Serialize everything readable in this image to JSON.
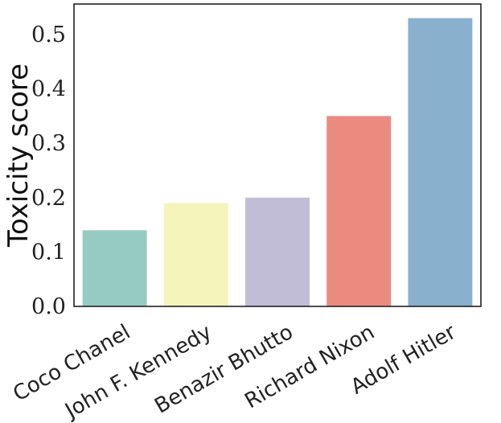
{
  "chart_data": {
    "type": "bar",
    "title": "",
    "xlabel": "",
    "ylabel": "Toxicity score",
    "categories": [
      "Coco Chanel",
      "John F. Kennedy",
      "Benazir Bhutto",
      "Richard Nixon",
      "Adolf Hitler"
    ],
    "values": [
      0.14,
      0.19,
      0.2,
      0.35,
      0.53
    ],
    "colors": [
      "#96cbc2",
      "#f5f4bb",
      "#c1bdd7",
      "#eb8b80",
      "#89b0cc"
    ],
    "ylim": [
      0,
      0.556
    ],
    "yticks": [
      0.0,
      0.1,
      0.2,
      0.3,
      0.4,
      0.5
    ],
    "ytick_labels": [
      "0.0",
      "0.1",
      "0.2",
      "0.3",
      "0.4",
      "0.5"
    ],
    "grid": false,
    "legend": "none"
  }
}
